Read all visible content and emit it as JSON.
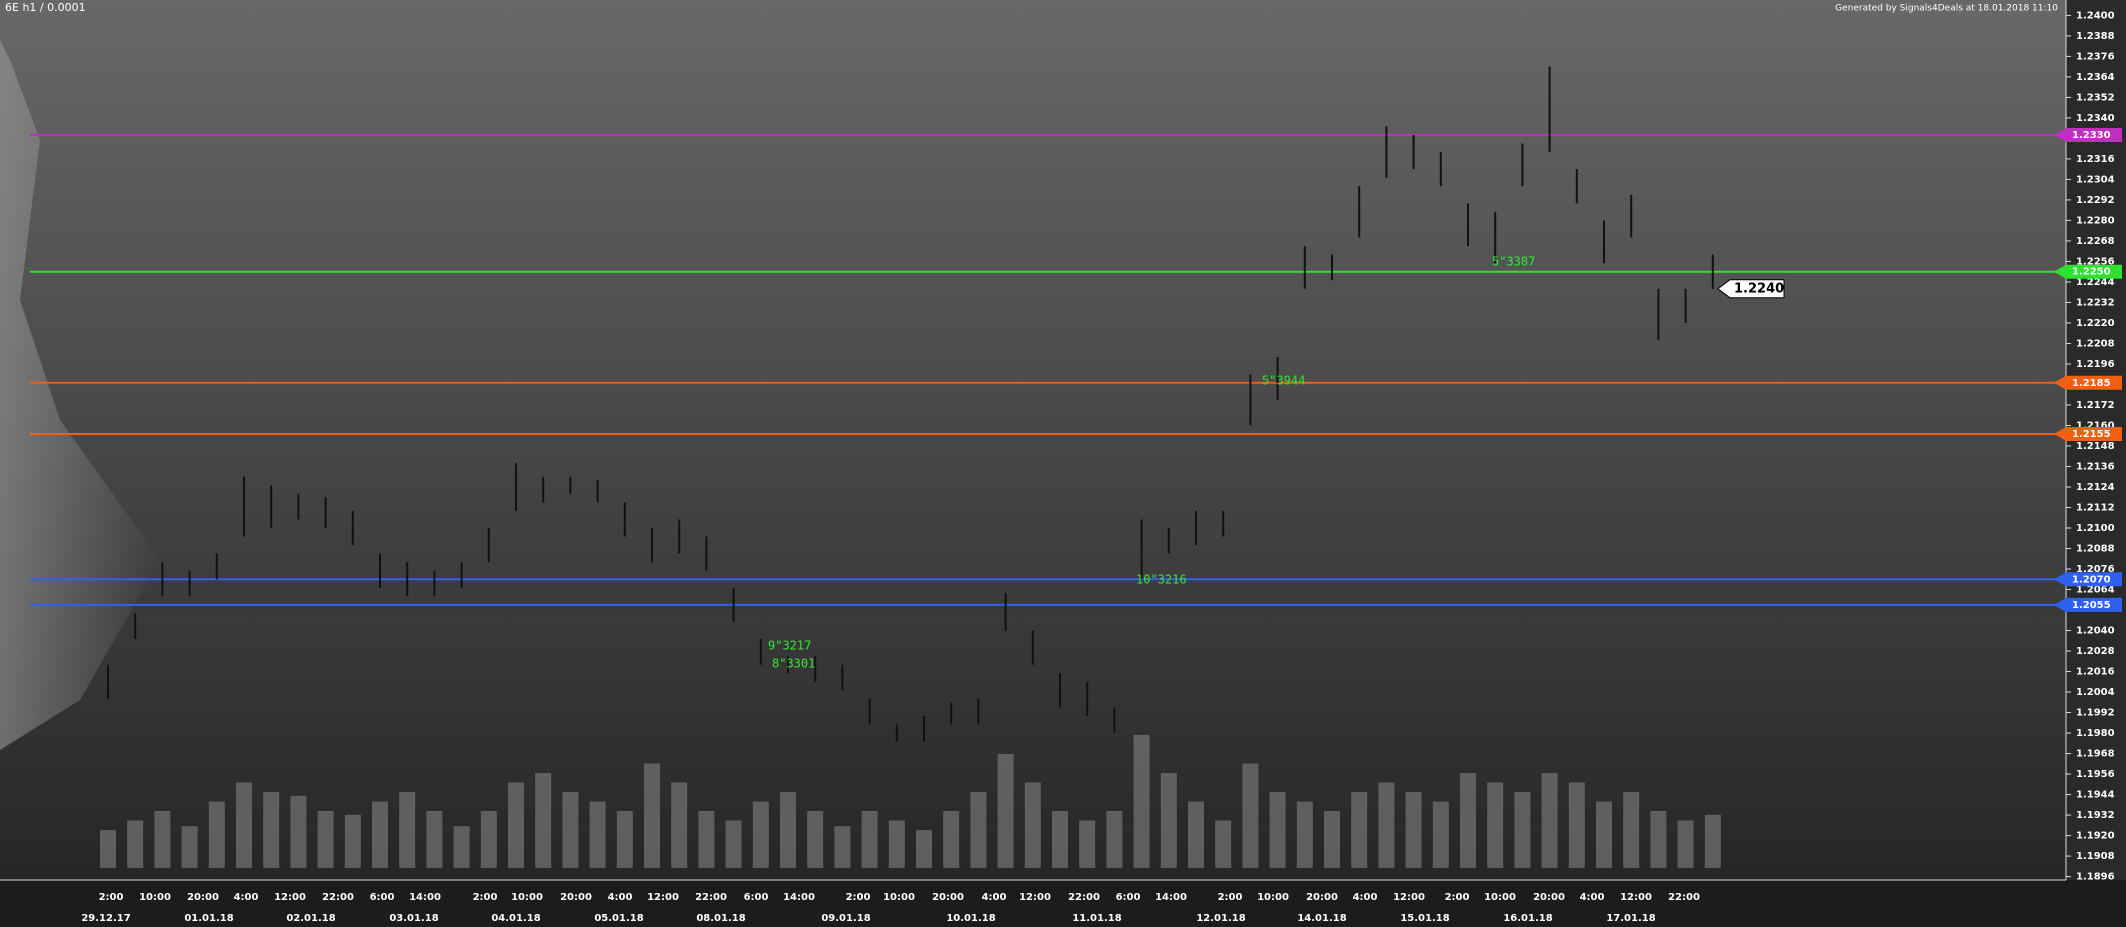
{
  "chart_data": {
    "type": "ohlc",
    "title": "6E h1 / 0.0001",
    "subtitle": "Generated by Signals4Deals at 18.01.2018 11:10",
    "ylim": [
      1.1894,
      1.2409
    ],
    "yticks": [
      {
        "value": 1.24,
        "label": "1.2400"
      },
      {
        "value": 1.2388,
        "label": "1.2388"
      },
      {
        "value": 1.2376,
        "label": "1.2376"
      },
      {
        "value": 1.2364,
        "label": "1.2364"
      },
      {
        "value": 1.2352,
        "label": "1.2352"
      },
      {
        "value": 1.234,
        "label": "1.2340"
      },
      {
        "value": 1.2316,
        "label": "1.2316"
      },
      {
        "value": 1.2304,
        "label": "1.2304"
      },
      {
        "value": 1.2292,
        "label": "1.2292"
      },
      {
        "value": 1.228,
        "label": "1.2280"
      },
      {
        "value": 1.2268,
        "label": "1.2268"
      },
      {
        "value": 1.2256,
        "label": "1.2256"
      },
      {
        "value": 1.2244,
        "label": "1.2244"
      },
      {
        "value": 1.2232,
        "label": "1.2232"
      },
      {
        "value": 1.222,
        "label": "1.2220"
      },
      {
        "value": 1.2208,
        "label": "1.2208"
      },
      {
        "value": 1.2196,
        "label": "1.2196"
      },
      {
        "value": 1.2172,
        "label": "1.2172"
      },
      {
        "value": 1.216,
        "label": "1.2160"
      },
      {
        "value": 1.2148,
        "label": "1.2148"
      },
      {
        "value": 1.2136,
        "label": "1.2136"
      },
      {
        "value": 1.2124,
        "label": "1.2124"
      },
      {
        "value": 1.2112,
        "label": "1.2112"
      },
      {
        "value": 1.21,
        "label": "1.2100"
      },
      {
        "value": 1.2088,
        "label": "1.2088"
      },
      {
        "value": 1.2076,
        "label": "1.2076"
      },
      {
        "value": 1.2064,
        "label": "1.2064"
      },
      {
        "value": 1.204,
        "label": "1.2040"
      },
      {
        "value": 1.2028,
        "label": "1.2028"
      },
      {
        "value": 1.2016,
        "label": "1.2016"
      },
      {
        "value": 1.2004,
        "label": "1.2004"
      },
      {
        "value": 1.1992,
        "label": "1.1992"
      },
      {
        "value": 1.198,
        "label": "1.1980"
      },
      {
        "value": 1.1968,
        "label": "1.1968"
      },
      {
        "value": 1.1956,
        "label": "1.1956"
      },
      {
        "value": 1.1944,
        "label": "1.1944"
      },
      {
        "value": 1.1932,
        "label": "1.1932"
      },
      {
        "value": 1.192,
        "label": "1.1920"
      },
      {
        "value": 1.1908,
        "label": "1.1908"
      },
      {
        "value": 1.1896,
        "label": "1.1896"
      }
    ],
    "time_labels": [
      "2:00",
      "10:00",
      "20:00",
      "4:00",
      "12:00",
      "22:00",
      "6:00",
      "14:00",
      "2:00",
      "10:00",
      "20:00",
      "4:00",
      "12:00",
      "22:00",
      "6:00",
      "14:00",
      "2:00",
      "10:00",
      "20:00",
      "4:00",
      "12:00",
      "22:00",
      "6:00",
      "14:00",
      "2:00",
      "10:00",
      "20:00",
      "4:00",
      "12:00",
      "2:00",
      "10:00",
      "20:00",
      "4:00",
      "12:00",
      "22:00"
    ],
    "date_labels": [
      "29.12.17",
      "01.01.18",
      "02.01.18",
      "03.01.18",
      "04.01.18",
      "05.01.18",
      "08.01.18",
      "09.01.18",
      "10.01.18",
      "11.01.18",
      "12.01.18",
      "14.01.18",
      "15.01.18",
      "16.01.18",
      "17.01.18"
    ],
    "bar_color": "#111111",
    "high": [
      1.202,
      1.205,
      1.208,
      1.2075,
      1.2085,
      1.213,
      1.2125,
      1.212,
      1.2118,
      1.211,
      1.2085,
      1.208,
      1.2075,
      1.208,
      1.21,
      1.2138,
      1.213,
      1.213,
      1.2128,
      1.2115,
      1.21,
      1.2105,
      1.2095,
      1.2065,
      1.2035,
      1.2025,
      1.2025,
      1.202,
      1.2,
      1.1985,
      1.199,
      1.1998,
      1.2,
      1.2062,
      1.204,
      1.2015,
      1.201,
      1.1995,
      1.2105,
      1.21,
      1.211,
      1.211,
      1.219,
      1.22,
      1.2265,
      1.226,
      1.23,
      1.2335,
      1.233,
      1.232,
      1.229,
      1.2285,
      1.2325,
      1.237,
      1.231,
      1.228,
      1.2295,
      1.224,
      1.224,
      1.226
    ],
    "low": [
      1.2,
      1.2035,
      1.206,
      1.206,
      1.207,
      1.2095,
      1.21,
      1.2105,
      1.21,
      1.209,
      1.2065,
      1.206,
      1.206,
      1.2065,
      1.208,
      1.211,
      1.2115,
      1.212,
      1.2115,
      1.2095,
      1.208,
      1.2085,
      1.2075,
      1.2045,
      1.202,
      1.2015,
      1.201,
      1.2005,
      1.1985,
      1.1975,
      1.1975,
      1.1985,
      1.1985,
      1.204,
      1.202,
      1.1995,
      1.199,
      1.198,
      1.207,
      1.2085,
      1.209,
      1.2095,
      1.216,
      1.2175,
      1.224,
      1.2245,
      1.227,
      1.2305,
      1.231,
      1.23,
      1.2265,
      1.2255,
      1.23,
      1.232,
      1.229,
      1.2255,
      1.227,
      1.221,
      1.222,
      1.224
    ],
    "volume_color": "#8a8a8a",
    "volume": [
      20,
      25,
      30,
      22,
      35,
      45,
      40,
      38,
      30,
      28,
      35,
      40,
      30,
      22,
      30,
      45,
      50,
      40,
      35,
      30,
      55,
      45,
      30,
      25,
      35,
      40,
      30,
      22,
      30,
      25,
      20,
      30,
      40,
      60,
      45,
      30,
      25,
      30,
      70,
      50,
      35,
      25,
      55,
      40,
      35,
      30,
      40,
      45,
      40,
      35,
      50,
      45,
      40,
      50,
      45,
      35,
      40,
      30,
      25,
      28
    ],
    "levels": [
      {
        "value": 1.233,
        "label": "1.2330",
        "color": "#c030c0"
      },
      {
        "value": 1.225,
        "label": "1.2250",
        "color": "#30e030"
      },
      {
        "value": 1.2185,
        "label": "1.2185",
        "color": "#f06010"
      },
      {
        "value": 1.2155,
        "label": "1.2155",
        "color": "#f06010"
      },
      {
        "value": 1.207,
        "label": "1.2070",
        "color": "#3060f0"
      },
      {
        "value": 1.2055,
        "label": "1.2055",
        "color": "#3060f0"
      }
    ],
    "last_price": {
      "value": 1.224,
      "label": "1.2240"
    },
    "annotations": [
      "9\"3217",
      "8\"3301",
      "10\"3216",
      "5\"3387",
      "5\"3944"
    ]
  }
}
